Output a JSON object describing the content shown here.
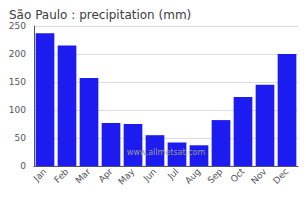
{
  "chart_data": {
    "type": "bar",
    "title": "São Paulo : precipitation (mm)",
    "categories": [
      "Jan",
      "Feb",
      "Mar",
      "Apr",
      "May",
      "Jun",
      "Jul",
      "Aug",
      "Sep",
      "Oct",
      "Nov",
      "Dec"
    ],
    "values": [
      237,
      215,
      157,
      77,
      75,
      55,
      42,
      37,
      82,
      123,
      145,
      200
    ],
    "color": "#1c1cf0",
    "ylim": [
      0,
      250
    ],
    "yticks": [
      0,
      50,
      100,
      150,
      200,
      250
    ],
    "grid": true,
    "annotations": [
      {
        "text": "www.allmetsat.com",
        "color": "#999999"
      }
    ]
  }
}
